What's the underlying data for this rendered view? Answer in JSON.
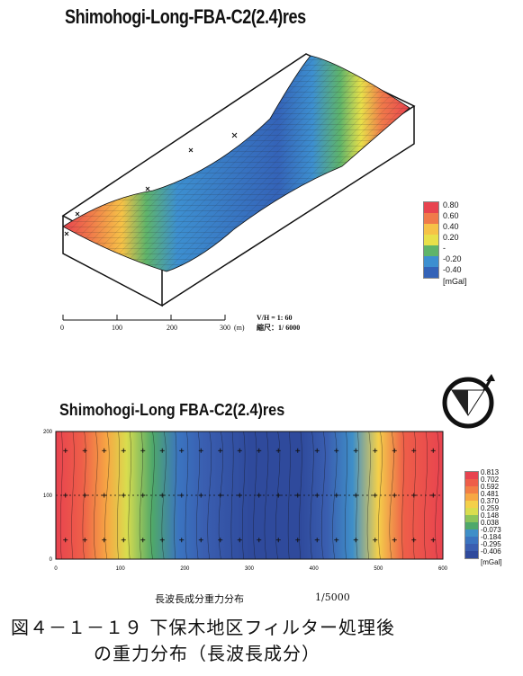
{
  "figure": {
    "top_title": "Shimohogi-Long-FBA-C2(2.4)res",
    "bottom_title": "Shimohogi-Long FBA-C2(2.4)res",
    "caption_line1": "図４－１－１９ 下保木地区フィルター処理後",
    "caption_line2": "の重力分布（長波長成分）",
    "bottom_note": "長波長成分重力分布",
    "bottom_scale": "1/5000"
  },
  "top_panel": {
    "legend_labels": [
      "0.80",
      "0.60",
      "0.40",
      "0.20",
      "-",
      "-0.20",
      "-0.40"
    ],
    "legend_unit": "[mGal]",
    "legend_colors": [
      "#e8434f",
      "#f07a4a",
      "#f6c247",
      "#e8e04a",
      "#5fb46a",
      "#3d8fd0",
      "#3463b8"
    ],
    "scale_ticks": [
      "0",
      "100",
      "200",
      "300"
    ],
    "scale_unit": "(m)",
    "vh_ratio": "V/H = 1:     60",
    "scale_ratio": "縮尺：1/  6000"
  },
  "chart_data": {
    "type": "heatmap",
    "title": "Shimohogi-Long FBA-C2(2.4)res",
    "x_ticks": [
      "0",
      "100",
      "200",
      "300",
      "400",
      "500",
      "600"
    ],
    "y_ticks": [
      "0",
      "100",
      "200"
    ],
    "xlim": [
      0,
      600
    ],
    "ylim": [
      0,
      200
    ],
    "colorbar_labels": [
      "0.813",
      "0.702",
      "0.592",
      "0.481",
      "0.370",
      "0.259",
      "0.148",
      "0.038",
      "-0.073",
      "-0.184",
      "-0.295",
      "-0.406"
    ],
    "colorbar_colors": [
      "#e8434f",
      "#ee5e49",
      "#f27f45",
      "#f6a844",
      "#f4d04a",
      "#d9dd4e",
      "#8cc45a",
      "#4fa86a",
      "#3f8fc8",
      "#3b74c0",
      "#3a5eb0",
      "#2f4a9c"
    ],
    "colorbar_unit": "[mGal]",
    "profile": {
      "x": [
        0,
        40,
        80,
        110,
        150,
        190,
        230,
        300,
        380,
        420,
        460,
        500,
        540,
        600
      ],
      "value": [
        0.75,
        0.65,
        0.45,
        0.3,
        0.05,
        -0.2,
        -0.3,
        -0.38,
        -0.4,
        -0.3,
        -0.05,
        0.35,
        0.7,
        0.8
      ]
    }
  },
  "north_arrow": {
    "label": "N"
  }
}
